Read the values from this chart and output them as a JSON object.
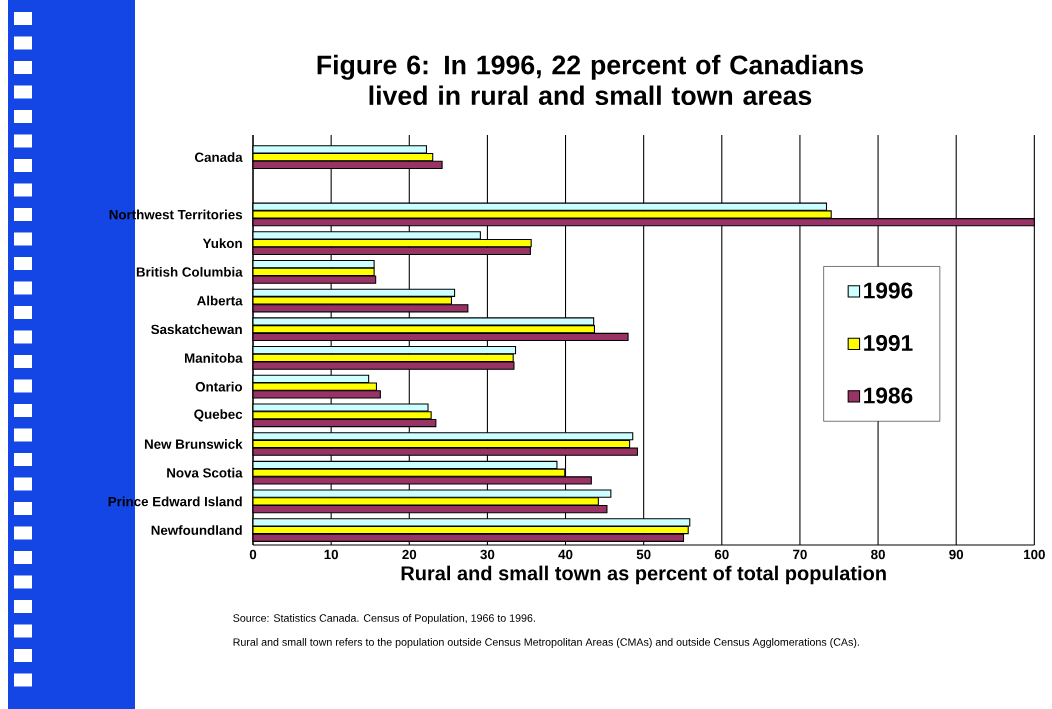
{
  "chart_data": {
    "type": "bar",
    "orientation": "horizontal",
    "title": "Figure 6: In 1996, 22 percent of Canadians lived in rural and small town areas",
    "xlabel": "Rural and small town as percent of total population",
    "categories": [
      "Canada",
      null,
      "Northwest Territories",
      "Yukon",
      "British Columbia",
      "Alberta",
      "Saskatchewan",
      "Manitoba",
      "Ontario",
      "Quebec",
      "New Brunswick",
      "Nova Scotia",
      "Prince Edward Island",
      "Newfoundland"
    ],
    "series": [
      {
        "name": "1996",
        "color": "#ccffff",
        "values": [
          22.2,
          null,
          73.4,
          29.1,
          15.5,
          25.8,
          43.6,
          33.6,
          14.8,
          22.4,
          48.6,
          38.9,
          45.8,
          55.9
        ]
      },
      {
        "name": "1991",
        "color": "#ffff00",
        "values": [
          23.0,
          null,
          74.0,
          35.6,
          15.5,
          25.4,
          43.7,
          33.3,
          15.8,
          22.8,
          48.2,
          39.9,
          44.2,
          55.7
        ]
      },
      {
        "name": "1986",
        "color": "#993366",
        "values": [
          24.2,
          null,
          100,
          35.5,
          15.7,
          27.5,
          48.0,
          33.4,
          16.3,
          23.4,
          49.2,
          43.3,
          45.3,
          55.1
        ]
      }
    ],
    "xlim": [
      0,
      100
    ],
    "xticks": [
      0,
      10,
      20,
      30,
      40,
      50,
      60,
      70,
      80,
      90,
      100
    ],
    "grid": "x",
    "legend": "right",
    "annotations": [
      "Source:  Statistics Canada.  Census of Population, 1966 to 1996.",
      "Rural and small town refers to the population outside Census Metropolitan Areas (CMAs) and outside Census Agglomerations (CAs)."
    ]
  }
}
